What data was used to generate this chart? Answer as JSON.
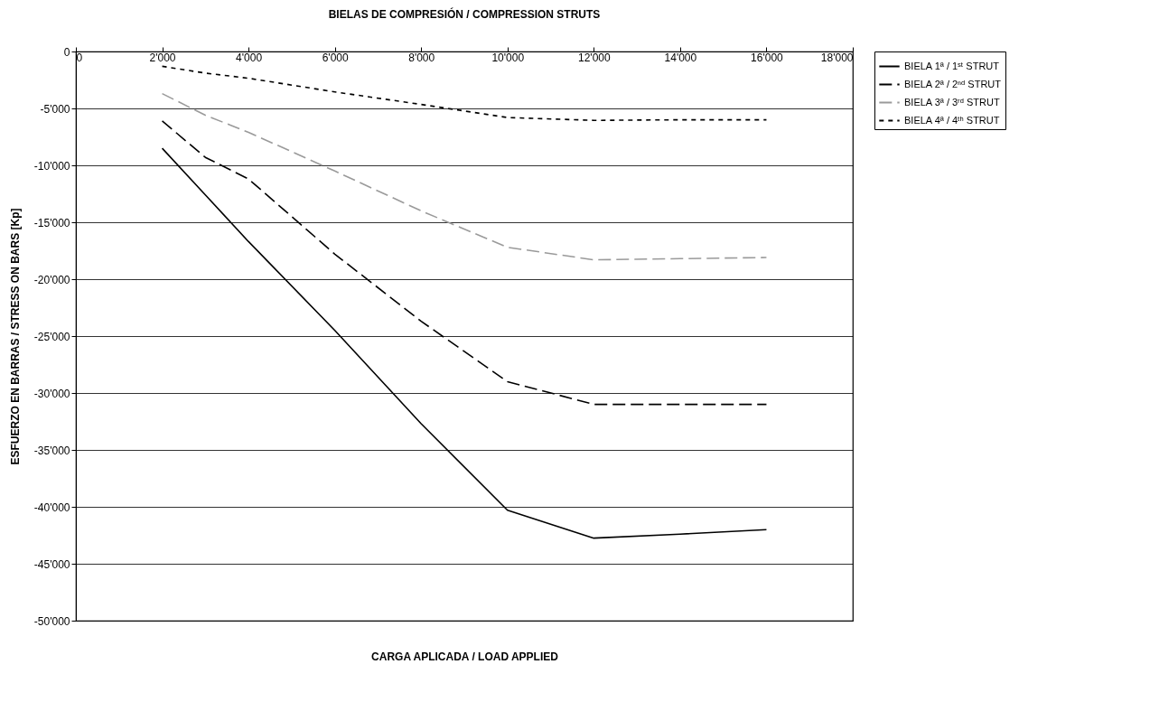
{
  "chart_data": {
    "type": "line",
    "title": "BIELAS DE COMPRESIÓN / COMPRESSION STRUTS",
    "xlabel": "CARGA APLICADA / LOAD APPLIED",
    "ylabel": "ESFUERZO EN BARRAS / STRESS ON BARS  [Kp]",
    "x": [
      2000,
      3000,
      4000,
      6000,
      8000,
      10000,
      12000,
      14000,
      16000
    ],
    "series": [
      {
        "name": "BIELA 1ª / 1ˢᵗ STRUT",
        "color": "#000000",
        "line_style": "solid",
        "values": [
          -8500,
          -12600,
          -16700,
          -24500,
          -32700,
          -40300,
          -42750,
          -42400,
          -42000
        ]
      },
      {
        "name": "BIELA 2ª / 2ⁿᵈ STRUT",
        "color": "#000000",
        "line_style": "dashed",
        "values": [
          -6100,
          -9300,
          -11200,
          -17800,
          -23700,
          -29000,
          -31000,
          -31000,
          -31000
        ]
      },
      {
        "name": "BIELA 3ª / 3ʳᵈ STRUT",
        "color": "#9a9a9a",
        "line_style": "dashed",
        "values": [
          -3700,
          -5600,
          -7100,
          -10500,
          -14000,
          -17200,
          -18300,
          -18200,
          -18100
        ]
      },
      {
        "name": "BIELA 4ª / 4ᵗʰ STRUT",
        "color": "#000000",
        "line_style": "dotted",
        "values": [
          -1300,
          -1900,
          -2350,
          -3550,
          -4650,
          -5800,
          -6050,
          -6000,
          -6000
        ]
      }
    ],
    "xlim": [
      0,
      18000
    ],
    "xticks": [
      0,
      {
        "value": 2000,
        "label": "2'000"
      },
      {
        "value": 4000,
        "label": "4'000"
      },
      {
        "value": 6000,
        "label": "6'000"
      },
      {
        "value": 8000,
        "label": "8'000"
      },
      {
        "value": 10000,
        "label": "10'000"
      },
      {
        "value": 12000,
        "label": "12'000"
      },
      {
        "value": 14000,
        "label": "14'000"
      },
      {
        "value": 16000,
        "label": "16'000"
      },
      {
        "value": 18000,
        "label": "18'000"
      }
    ],
    "ylim": [
      -50000,
      0
    ],
    "yticks": [
      0,
      {
        "value": -5000,
        "label": "-5'000"
      },
      {
        "value": -10000,
        "label": "-10'000"
      },
      {
        "value": -15000,
        "label": "-15'000"
      },
      {
        "value": -20000,
        "label": "-20'000"
      },
      {
        "value": -25000,
        "label": "-25'000"
      },
      {
        "value": -30000,
        "label": "-30'000"
      },
      {
        "value": -35000,
        "label": "-35'000"
      },
      {
        "value": -40000,
        "label": "-40'000"
      },
      {
        "value": -45000,
        "label": "-45'000"
      },
      {
        "value": -50000,
        "label": "-50'000"
      }
    ],
    "grid": "y",
    "legend": "right",
    "marker": "none"
  }
}
